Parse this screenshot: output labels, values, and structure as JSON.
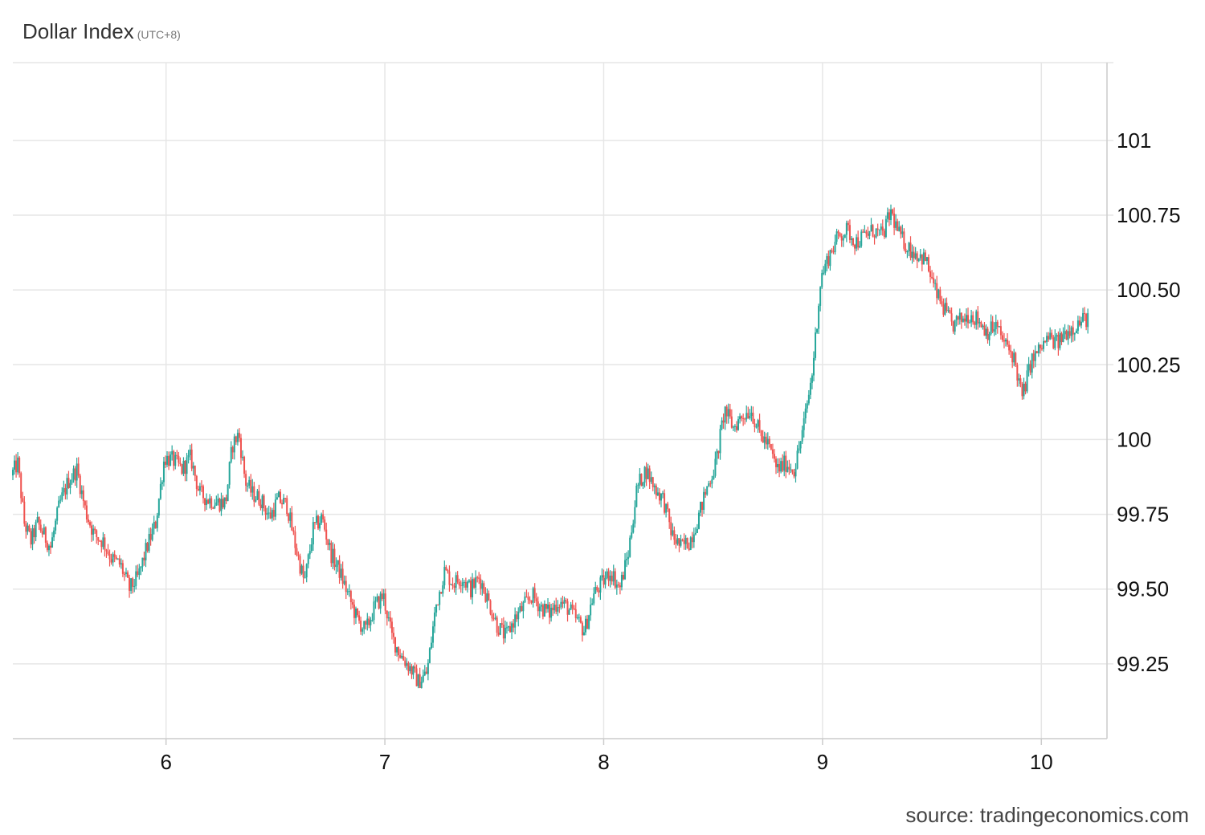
{
  "chart_data": {
    "type": "candlestick",
    "title": "Dollar Index",
    "subtitle": "(UTC+8)",
    "source": "source: tradingeconomics.com",
    "colors": {
      "up": "#26a69a",
      "down": "#ef5350",
      "grid": "#e6e6e6"
    },
    "xlim": [
      5.3,
      10.3
    ],
    "ylim": [
      99.0,
      101.26
    ],
    "x_ticks": [
      {
        "value": 6,
        "label": "6"
      },
      {
        "value": 7,
        "label": "7"
      },
      {
        "value": 8,
        "label": "8"
      },
      {
        "value": 9,
        "label": "9"
      },
      {
        "value": 10,
        "label": "10"
      }
    ],
    "y_ticks": [
      {
        "value": 99.25,
        "label": "99.25"
      },
      {
        "value": 99.5,
        "label": "99.50"
      },
      {
        "value": 99.75,
        "label": "99.75"
      },
      {
        "value": 100.0,
        "label": "100"
      },
      {
        "value": 100.25,
        "label": "100.25"
      },
      {
        "value": 100.5,
        "label": "100.50"
      },
      {
        "value": 100.75,
        "label": "100.75"
      },
      {
        "value": 101.0,
        "label": "101"
      }
    ],
    "grid": true,
    "price_path": [
      [
        5.3,
        99.88
      ],
      [
        5.33,
        99.92
      ],
      [
        5.36,
        99.72
      ],
      [
        5.39,
        99.66
      ],
      [
        5.42,
        99.72
      ],
      [
        5.45,
        99.68
      ],
      [
        5.48,
        99.64
      ],
      [
        5.52,
        99.78
      ],
      [
        5.56,
        99.86
      ],
      [
        5.6,
        99.9
      ],
      [
        5.64,
        99.76
      ],
      [
        5.68,
        99.68
      ],
      [
        5.72,
        99.66
      ],
      [
        5.76,
        99.6
      ],
      [
        5.8,
        99.58
      ],
      [
        5.84,
        99.5
      ],
      [
        5.88,
        99.54
      ],
      [
        5.92,
        99.64
      ],
      [
        5.96,
        99.72
      ],
      [
        6.0,
        99.94
      ],
      [
        6.04,
        99.93
      ],
      [
        6.08,
        99.9
      ],
      [
        6.12,
        99.94
      ],
      [
        6.16,
        99.82
      ],
      [
        6.2,
        99.8
      ],
      [
        6.24,
        99.79
      ],
      [
        6.28,
        99.79
      ],
      [
        6.31,
        99.98
      ],
      [
        6.34,
        100.02
      ],
      [
        6.37,
        99.86
      ],
      [
        6.4,
        99.82
      ],
      [
        6.44,
        99.8
      ],
      [
        6.48,
        99.74
      ],
      [
        6.52,
        99.8
      ],
      [
        6.56,
        99.78
      ],
      [
        6.6,
        99.64
      ],
      [
        6.64,
        99.52
      ],
      [
        6.68,
        99.7
      ],
      [
        6.72,
        99.74
      ],
      [
        6.76,
        99.62
      ],
      [
        6.8,
        99.56
      ],
      [
        6.84,
        99.48
      ],
      [
        6.88,
        99.4
      ],
      [
        6.92,
        99.36
      ],
      [
        6.96,
        99.44
      ],
      [
        7.0,
        99.48
      ],
      [
        7.04,
        99.34
      ],
      [
        7.08,
        99.28
      ],
      [
        7.12,
        99.24
      ],
      [
        7.16,
        99.19
      ],
      [
        7.2,
        99.22
      ],
      [
        7.24,
        99.44
      ],
      [
        7.28,
        99.56
      ],
      [
        7.32,
        99.52
      ],
      [
        7.36,
        99.54
      ],
      [
        7.4,
        99.5
      ],
      [
        7.44,
        99.54
      ],
      [
        7.48,
        99.46
      ],
      [
        7.52,
        99.38
      ],
      [
        7.56,
        99.34
      ],
      [
        7.6,
        99.4
      ],
      [
        7.64,
        99.44
      ],
      [
        7.68,
        99.48
      ],
      [
        7.72,
        99.44
      ],
      [
        7.76,
        99.42
      ],
      [
        7.8,
        99.46
      ],
      [
        7.84,
        99.44
      ],
      [
        7.88,
        99.4
      ],
      [
        7.92,
        99.36
      ],
      [
        7.96,
        99.48
      ],
      [
        8.0,
        99.52
      ],
      [
        8.04,
        99.56
      ],
      [
        8.08,
        99.5
      ],
      [
        8.12,
        99.62
      ],
      [
        8.16,
        99.84
      ],
      [
        8.2,
        99.9
      ],
      [
        8.24,
        99.84
      ],
      [
        8.28,
        99.8
      ],
      [
        8.32,
        99.68
      ],
      [
        8.36,
        99.64
      ],
      [
        8.4,
        99.66
      ],
      [
        8.44,
        99.74
      ],
      [
        8.48,
        99.84
      ],
      [
        8.52,
        99.92
      ],
      [
        8.56,
        100.1
      ],
      [
        8.6,
        100.04
      ],
      [
        8.64,
        100.08
      ],
      [
        8.68,
        100.1
      ],
      [
        8.72,
        100.02
      ],
      [
        8.76,
        99.98
      ],
      [
        8.8,
        99.9
      ],
      [
        8.84,
        99.92
      ],
      [
        8.88,
        99.9
      ],
      [
        8.92,
        100.04
      ],
      [
        8.96,
        100.22
      ],
      [
        9.0,
        100.54
      ],
      [
        9.04,
        100.62
      ],
      [
        9.08,
        100.68
      ],
      [
        9.12,
        100.7
      ],
      [
        9.16,
        100.66
      ],
      [
        9.2,
        100.68
      ],
      [
        9.24,
        100.7
      ],
      [
        9.28,
        100.68
      ],
      [
        9.32,
        100.76
      ],
      [
        9.36,
        100.68
      ],
      [
        9.4,
        100.64
      ],
      [
        9.44,
        100.62
      ],
      [
        9.48,
        100.6
      ],
      [
        9.52,
        100.5
      ],
      [
        9.56,
        100.44
      ],
      [
        9.6,
        100.38
      ],
      [
        9.64,
        100.4
      ],
      [
        9.68,
        100.42
      ],
      [
        9.72,
        100.4
      ],
      [
        9.76,
        100.36
      ],
      [
        9.8,
        100.38
      ],
      [
        9.84,
        100.32
      ],
      [
        9.88,
        100.28
      ],
      [
        9.92,
        100.14
      ],
      [
        9.96,
        100.26
      ],
      [
        10.0,
        100.3
      ],
      [
        10.04,
        100.34
      ],
      [
        10.08,
        100.32
      ],
      [
        10.12,
        100.36
      ],
      [
        10.16,
        100.38
      ],
      [
        10.2,
        100.4
      ],
      [
        10.22,
        100.41
      ]
    ]
  }
}
